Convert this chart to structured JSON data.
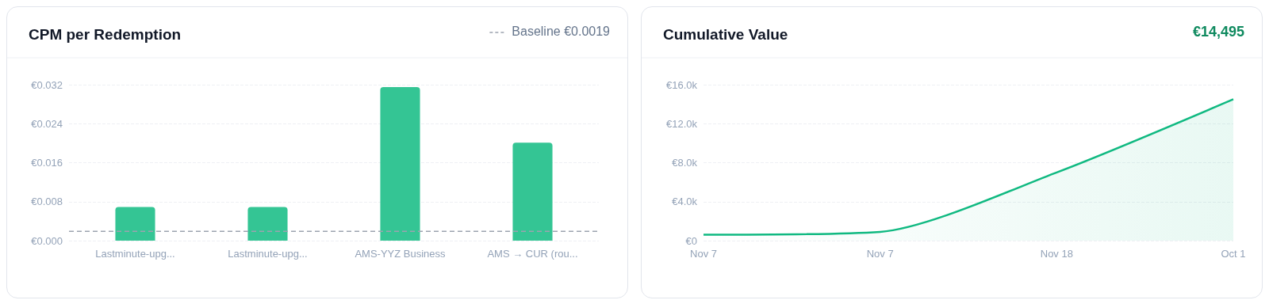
{
  "chart_data": [
    {
      "type": "bar",
      "title": "CPM per Redemption",
      "categories": [
        "Lastminute-upg...",
        "Lastminute-upg...",
        "AMS-YYZ Business",
        "AMS → CUR (rou..."
      ],
      "values": [
        0.0069,
        0.0069,
        0.0315,
        0.0201
      ],
      "color": "#34c594",
      "ylim": [
        0,
        0.032
      ],
      "yticks": [
        {
          "value": 0,
          "label": "€0.000"
        },
        {
          "value": 0.008,
          "label": "€0.008"
        },
        {
          "value": 0.016,
          "label": "€0.016"
        },
        {
          "value": 0.024,
          "label": "€0.024"
        },
        {
          "value": 0.032,
          "label": "€0.032"
        }
      ],
      "grid": "y",
      "ref_lines": [
        {
          "axis": "y",
          "value": 0.0019,
          "label": "Baseline €0.0019",
          "color": "#9ca3af",
          "line_style": "dashed"
        }
      ]
    },
    {
      "type": "area",
      "title": "Cumulative Value",
      "subtitle": "€14,495",
      "categories": [
        "Nov 7",
        "Nov 7",
        "Nov 18",
        "Oct 1"
      ],
      "values": [
        600,
        900,
        7000,
        14500
      ],
      "color": "#10b981",
      "ylim": [
        0,
        16000
      ],
      "yticks": [
        {
          "value": 0,
          "label": "€0"
        },
        {
          "value": 4000,
          "label": "€4.0k"
        },
        {
          "value": 8000,
          "label": "€8.0k"
        },
        {
          "value": 12000,
          "label": "€12.0k"
        },
        {
          "value": 16000,
          "label": "€16.0k"
        }
      ],
      "grid": "y"
    }
  ]
}
